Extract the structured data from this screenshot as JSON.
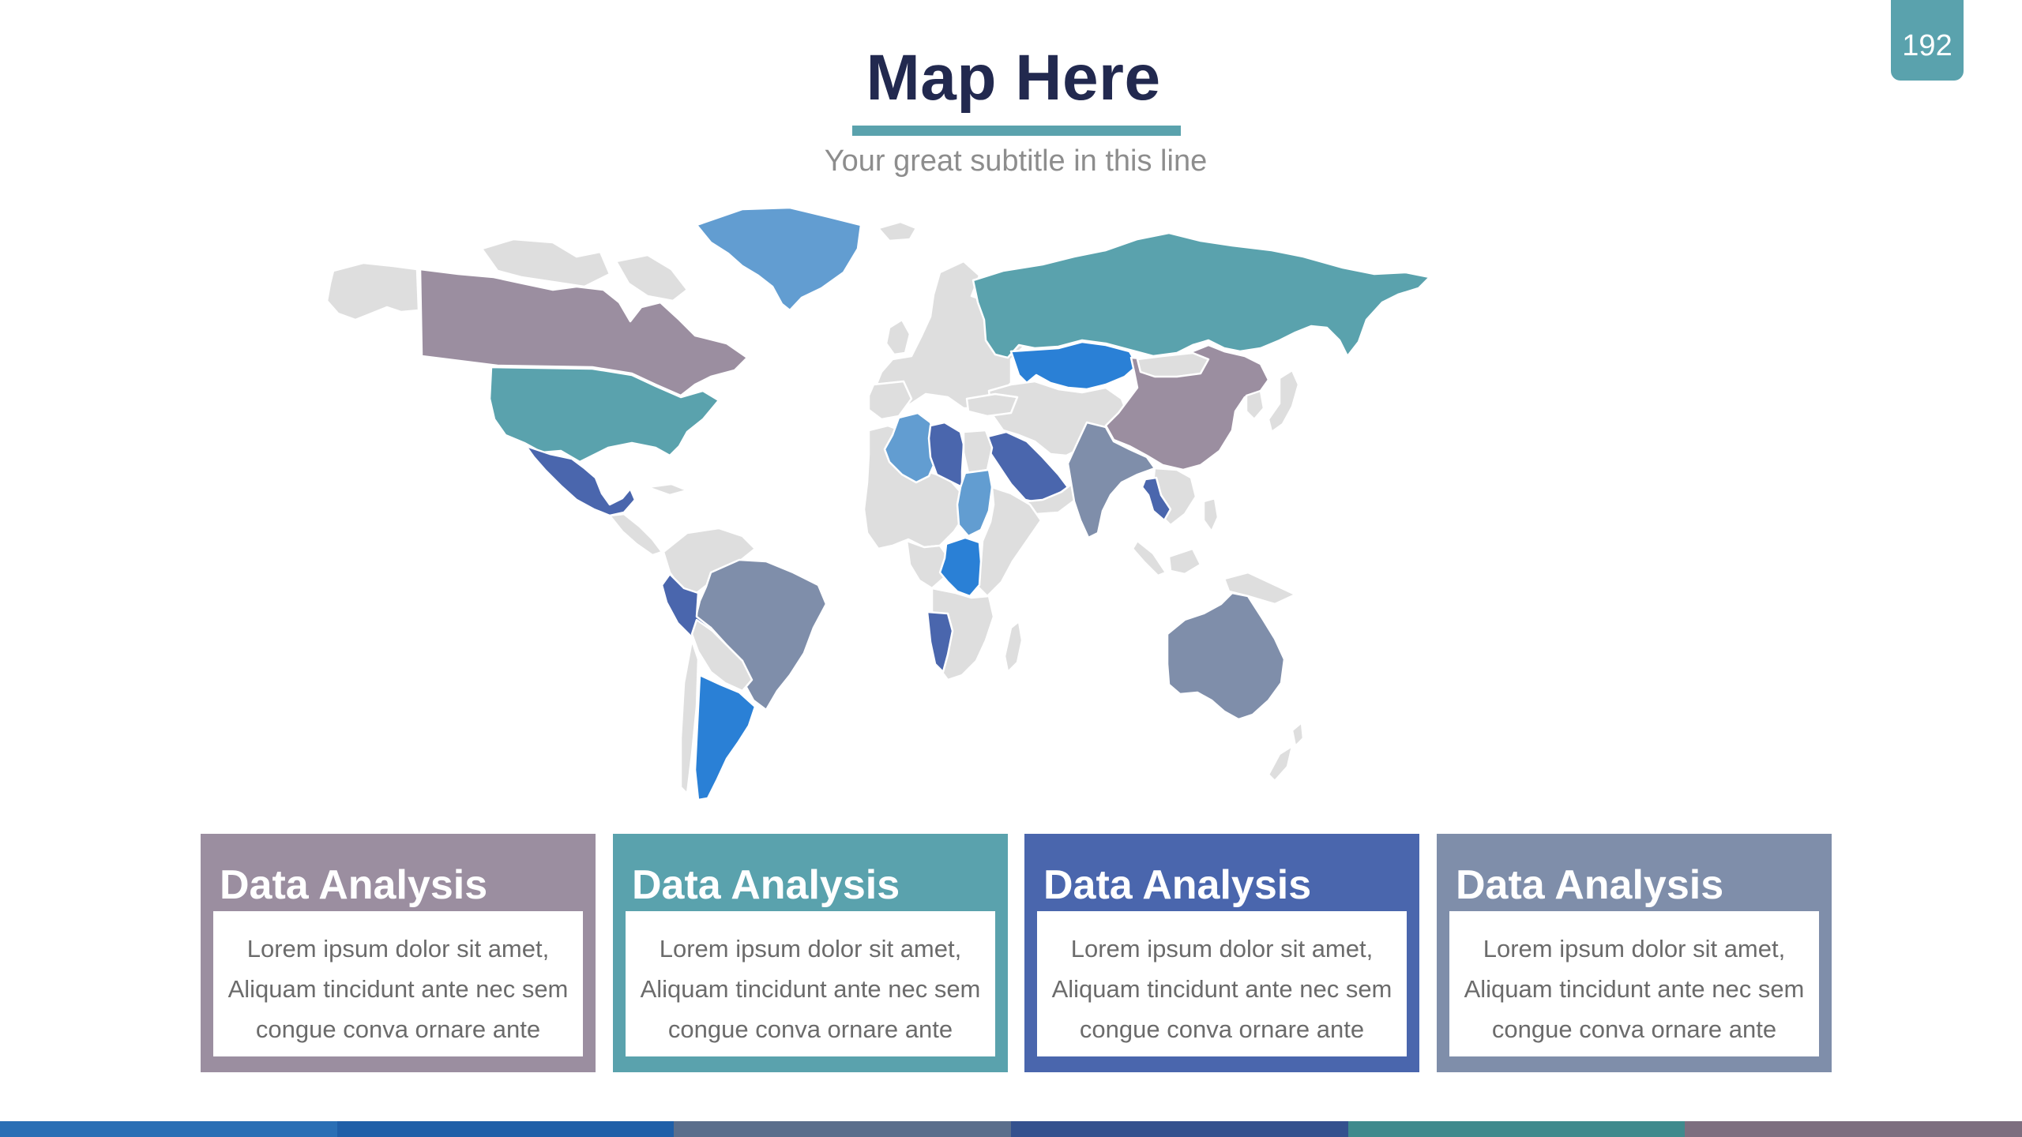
{
  "slide": {
    "page_number": "192",
    "title": "Map Here",
    "subtitle": "Your great subtitle in this line"
  },
  "colors": {
    "accent": "#5aa2ad",
    "title": "#22294f",
    "land_default": "#dedede",
    "mauve": "#9b8ea0",
    "teal": "#5aa2ad",
    "light_blue": "#629dd1",
    "bright_blue": "#2a80d6",
    "indigo": "#4a66ad",
    "slate": "#7f8eaa"
  },
  "map": {
    "highlighted_regions": [
      {
        "name": "Canada",
        "color": "mauve"
      },
      {
        "name": "United States",
        "color": "teal"
      },
      {
        "name": "Mexico",
        "color": "indigo"
      },
      {
        "name": "Greenland",
        "color": "light_blue"
      },
      {
        "name": "Brazil",
        "color": "slate"
      },
      {
        "name": "Peru",
        "color": "indigo"
      },
      {
        "name": "Argentina",
        "color": "bright_blue"
      },
      {
        "name": "Algeria",
        "color": "light_blue"
      },
      {
        "name": "Libya",
        "color": "indigo"
      },
      {
        "name": "Sudan",
        "color": "light_blue"
      },
      {
        "name": "DR Congo",
        "color": "bright_blue"
      },
      {
        "name": "Namibia",
        "color": "indigo"
      },
      {
        "name": "Saudi Arabia",
        "color": "indigo"
      },
      {
        "name": "Russia",
        "color": "teal"
      },
      {
        "name": "Kazakhstan",
        "color": "bright_blue"
      },
      {
        "name": "China",
        "color": "mauve"
      },
      {
        "name": "India",
        "color": "slate"
      },
      {
        "name": "Thailand",
        "color": "indigo"
      },
      {
        "name": "Australia",
        "color": "slate"
      }
    ]
  },
  "cards": [
    {
      "title": "Data Analysis",
      "body": "Lorem ipsum dolor sit amet, Aliquam tincidunt ante nec sem congue conva ornare ante",
      "color": "#9b8ea0"
    },
    {
      "title": "Data Analysis",
      "body": "Lorem ipsum dolor sit amet, Aliquam tincidunt ante nec sem congue conva ornare ante",
      "color": "#5aa2ad"
    },
    {
      "title": "Data Analysis",
      "body": "Lorem ipsum dolor sit amet, Aliquam tincidunt ante nec sem congue conva ornare ante",
      "color": "#4a66ad"
    },
    {
      "title": "Data Analysis",
      "body": "Lorem ipsum dolor sit amet, Aliquam tincidunt ante nec sem congue conva ornare ante",
      "color": "#7f8eaa"
    }
  ],
  "footer_colors": [
    "#2a6fb5",
    "#1f5fa8",
    "#5a6e8c",
    "#34518e",
    "#3f8a8d",
    "#7d6e7f"
  ]
}
